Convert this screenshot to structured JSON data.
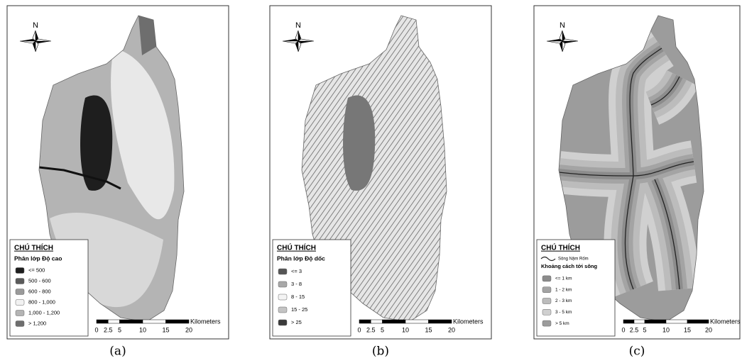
{
  "panels": [
    {
      "caption": "(a)",
      "north": "N",
      "legend": {
        "title": "CHÚ THÍCH",
        "subtitle": "Phân lớp Độ cao",
        "items": [
          {
            "label": "<= 500",
            "color": "#1e1e1e"
          },
          {
            "label": "500 - 600",
            "color": "#5a5a5a"
          },
          {
            "label": "600 - 800",
            "color": "#9a9a9a"
          },
          {
            "label": "800 - 1,000",
            "color": "#f2f2f2"
          },
          {
            "label": "1,000 - 1,200",
            "color": "#b4b4b4"
          },
          {
            "label": "> 1,200",
            "color": "#6e6e6e"
          }
        ]
      },
      "scale": {
        "labels": [
          "0",
          "2.5",
          "5",
          "10",
          "15",
          "20"
        ],
        "unit": "Kilometers"
      }
    },
    {
      "caption": "(b)",
      "north": "N",
      "legend": {
        "title": "CHÚ THÍCH",
        "subtitle": "Phân lớp Độ dốc",
        "items": [
          {
            "label": "<= 3",
            "color": "#555555"
          },
          {
            "label": "3 - 8",
            "color": "#a8a8a8"
          },
          {
            "label": "8 - 15",
            "color": "#f4f4f4"
          },
          {
            "label": "15 - 25",
            "color": "#c4c4c4"
          },
          {
            "label": "> 25",
            "color": "#3a3a3a"
          }
        ]
      },
      "scale": {
        "labels": [
          "0",
          "2.5",
          "5",
          "10",
          "15",
          "20"
        ],
        "unit": "Kilometers"
      }
    },
    {
      "caption": "(c)",
      "north": "N",
      "legend": {
        "title": "CHÚ THÍCH",
        "line_item": "Sông Nậm Rốm",
        "subtitle": "Khoảng cách tới sông",
        "items": [
          {
            "label": "<= 1 km",
            "color": "#8c8c8c"
          },
          {
            "label": "1 - 2 km",
            "color": "#a4a4a4"
          },
          {
            "label": "2 - 3 km",
            "color": "#bcbcbc"
          },
          {
            "label": "3 - 5 km",
            "color": "#d0d0d0"
          },
          {
            "label": "> 5 km",
            "color": "#9c9c9c"
          }
        ]
      },
      "scale": {
        "labels": [
          "0",
          "2.5",
          "5",
          "10",
          "15",
          "20"
        ],
        "unit": "Kilometers"
      }
    }
  ]
}
